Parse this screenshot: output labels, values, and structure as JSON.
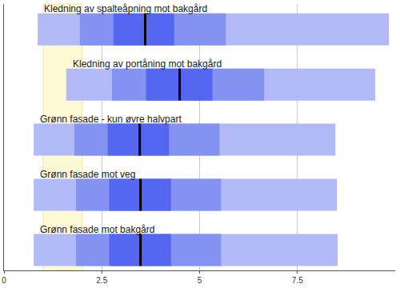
{
  "chart_data": {
    "type": "range",
    "orientation": "horizontal",
    "categories": [
      "Kledning av spalteåpning mot bakgård",
      "Kledning av portåning mot bakgård",
      "Grønn fasade - kun øvre halvpart",
      "Grønn fasade mot veg",
      "Grønn fasade mot bakgård"
    ],
    "series": [
      {
        "color": "#b1b9f7",
        "low": [
          0.86,
          1.59,
          0.76,
          0.76,
          0.76
        ],
        "high": [
          9.84,
          9.49,
          8.47,
          8.51,
          8.53
        ]
      },
      {
        "color": "#8492f2",
        "low": [
          1.94,
          2.76,
          1.8,
          1.84,
          1.84
        ],
        "high": [
          5.67,
          6.65,
          5.51,
          5.55,
          5.55
        ]
      },
      {
        "color": "#5567f0",
        "low": [
          2.8,
          3.63,
          2.65,
          2.69,
          2.69
        ],
        "high": [
          4.35,
          5.33,
          4.22,
          4.27,
          4.27
        ]
      }
    ],
    "median": {
      "color": "#000000",
      "values": [
        3.61,
        4.49,
        3.47,
        3.49,
        3.49
      ]
    },
    "highlight": {
      "color": "#fcf9d4",
      "range": [
        1,
        2
      ]
    },
    "xlim": [
      0,
      10
    ],
    "xticks": [
      0,
      2.5,
      5,
      7.5
    ],
    "grid": true,
    "tick_labels": "x"
  }
}
